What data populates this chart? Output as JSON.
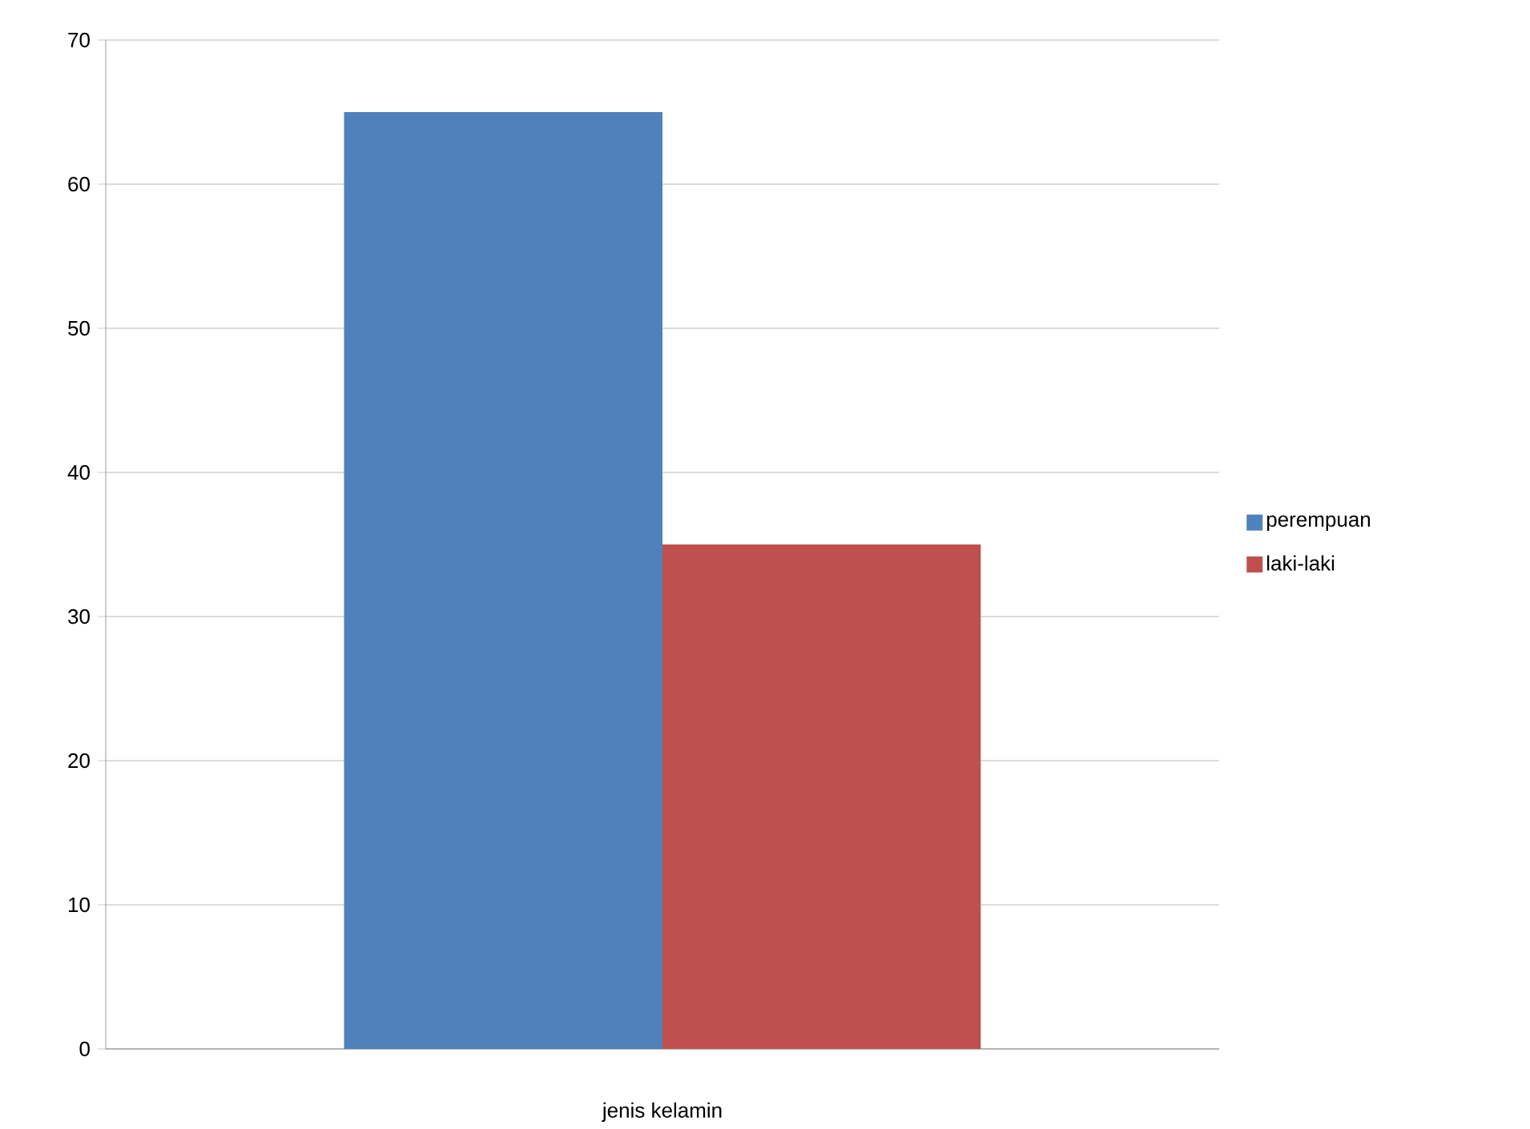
{
  "chart_data": {
    "type": "bar",
    "xlabel": "jenis kelamin",
    "categories": [
      null
    ],
    "series": [
      {
        "name": "perempuan",
        "color": "#4f81bd",
        "values": [
          65
        ]
      },
      {
        "name": "laki-laki",
        "color": "#c0504d",
        "values": [
          35
        ]
      }
    ],
    "ylim": [
      0,
      70
    ],
    "yticks": [
      0,
      10,
      20,
      30,
      40,
      50,
      60,
      70
    ],
    "grid": "y",
    "legend": "right"
  }
}
